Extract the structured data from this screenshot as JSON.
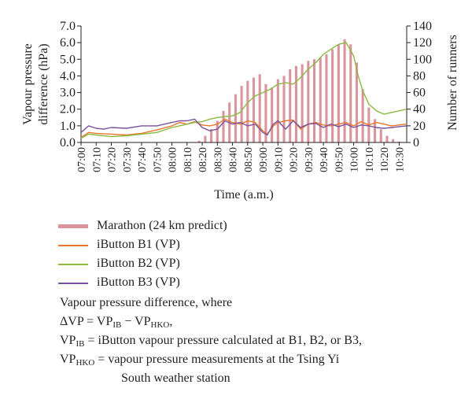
{
  "chart_data": {
    "type": "line+bar",
    "xlabel": "Time (a.m.)",
    "ylabel_left_line1": "Vapour pressure",
    "ylabel_left_line2": "difference (hPa)",
    "ylabel_right": "Number of runners",
    "ylim_left": [
      0,
      7
    ],
    "ylim_right": [
      0,
      140
    ],
    "left_ticks": [
      "0.0",
      "1.0",
      "2.0",
      "3.0",
      "4.0",
      "5.0",
      "6.0",
      "7.0"
    ],
    "right_ticks": [
      "0",
      "20",
      "40",
      "60",
      "80",
      "100",
      "120",
      "140"
    ],
    "x_tick_labels": [
      "07:00",
      "07:10",
      "07:20",
      "07:30",
      "07:40",
      "07:50",
      "08:00",
      "08:10",
      "08:20",
      "08:30",
      "08:40",
      "08:50",
      "09:00",
      "09:10",
      "09:20",
      "09:30",
      "09:40",
      "09:50",
      "10:00",
      "10:10",
      "10:20",
      "10:30"
    ],
    "x_start": "07:00",
    "x_end": "10:35",
    "grid": false,
    "bars": {
      "name": "Marathon (24 km predict)",
      "color": "#d9959b",
      "points": [
        [
          "08:18",
          2
        ],
        [
          "08:22",
          8
        ],
        [
          "08:26",
          16
        ],
        [
          "08:30",
          26
        ],
        [
          "08:34",
          38
        ],
        [
          "08:38",
          48
        ],
        [
          "08:42",
          58
        ],
        [
          "08:46",
          68
        ],
        [
          "08:50",
          74
        ],
        [
          "08:54",
          78
        ],
        [
          "08:58",
          82
        ],
        [
          "09:02",
          70
        ],
        [
          "09:06",
          66
        ],
        [
          "09:10",
          76
        ],
        [
          "09:14",
          80
        ],
        [
          "09:18",
          88
        ],
        [
          "09:22",
          92
        ],
        [
          "09:26",
          94
        ],
        [
          "09:30",
          98
        ],
        [
          "09:34",
          100
        ],
        [
          "09:38",
          102
        ],
        [
          "09:42",
          106
        ],
        [
          "09:46",
          112
        ],
        [
          "09:50",
          118
        ],
        [
          "09:54",
          124
        ],
        [
          "09:58",
          118
        ],
        [
          "10:02",
          96
        ],
        [
          "10:06",
          64
        ],
        [
          "10:10",
          42
        ],
        [
          "10:14",
          28
        ],
        [
          "10:18",
          16
        ],
        [
          "10:22",
          8
        ],
        [
          "10:26",
          4
        ],
        [
          "10:30",
          1
        ]
      ]
    },
    "series": [
      {
        "name": "iButton B1 (VP)",
        "color": "#e8772e",
        "points": [
          [
            "07:00",
            0.3
          ],
          [
            "07:05",
            0.6
          ],
          [
            "07:10",
            0.55
          ],
          [
            "07:20",
            0.5
          ],
          [
            "07:30",
            0.45
          ],
          [
            "07:40",
            0.55
          ],
          [
            "07:50",
            0.75
          ],
          [
            "08:00",
            1.0
          ],
          [
            "08:05",
            1.2
          ],
          [
            "08:10",
            1.1
          ],
          [
            "08:15",
            1.25
          ],
          [
            "08:20",
            1.05
          ],
          [
            "08:25",
            1.0
          ],
          [
            "08:30",
            1.1
          ],
          [
            "08:35",
            1.4
          ],
          [
            "08:40",
            1.2
          ],
          [
            "08:45",
            1.1
          ],
          [
            "08:50",
            1.3
          ],
          [
            "08:55",
            1.2
          ],
          [
            "09:00",
            0.7
          ],
          [
            "09:03",
            0.5
          ],
          [
            "09:07",
            1.0
          ],
          [
            "09:10",
            1.2
          ],
          [
            "09:15",
            1.3
          ],
          [
            "09:20",
            1.35
          ],
          [
            "09:25",
            0.8
          ],
          [
            "09:30",
            1.1
          ],
          [
            "09:35",
            1.2
          ],
          [
            "09:40",
            1.05
          ],
          [
            "09:45",
            1.0
          ],
          [
            "09:50",
            1.1
          ],
          [
            "09:55",
            1.2
          ],
          [
            "10:00",
            1.0
          ],
          [
            "10:05",
            1.25
          ],
          [
            "10:10",
            1.05
          ],
          [
            "10:15",
            1.2
          ],
          [
            "10:20",
            1.1
          ],
          [
            "10:25",
            1.0
          ],
          [
            "10:30",
            1.05
          ],
          [
            "10:35",
            1.1
          ]
        ]
      },
      {
        "name": "iButton B2 (VP)",
        "color": "#8bba43",
        "points": [
          [
            "07:00",
            0.25
          ],
          [
            "07:05",
            0.5
          ],
          [
            "07:10",
            0.45
          ],
          [
            "07:20",
            0.35
          ],
          [
            "07:30",
            0.4
          ],
          [
            "07:40",
            0.5
          ],
          [
            "07:50",
            0.6
          ],
          [
            "08:00",
            0.9
          ],
          [
            "08:05",
            1.0
          ],
          [
            "08:10",
            1.1
          ],
          [
            "08:15",
            1.2
          ],
          [
            "08:20",
            1.25
          ],
          [
            "08:25",
            1.4
          ],
          [
            "08:30",
            1.5
          ],
          [
            "08:35",
            1.55
          ],
          [
            "08:40",
            1.6
          ],
          [
            "08:45",
            1.8
          ],
          [
            "08:50",
            2.4
          ],
          [
            "08:55",
            2.8
          ],
          [
            "09:00",
            3.0
          ],
          [
            "09:05",
            3.2
          ],
          [
            "09:10",
            3.5
          ],
          [
            "09:15",
            3.6
          ],
          [
            "09:20",
            3.5
          ],
          [
            "09:25",
            3.9
          ],
          [
            "09:30",
            4.4
          ],
          [
            "09:35",
            4.8
          ],
          [
            "09:40",
            5.3
          ],
          [
            "09:45",
            5.6
          ],
          [
            "09:50",
            5.9
          ],
          [
            "09:55",
            6.0
          ],
          [
            "10:00",
            5.2
          ],
          [
            "10:03",
            4.0
          ],
          [
            "10:06",
            3.1
          ],
          [
            "10:10",
            2.3
          ],
          [
            "10:15",
            1.9
          ],
          [
            "10:20",
            1.7
          ],
          [
            "10:25",
            1.8
          ],
          [
            "10:30",
            1.9
          ],
          [
            "10:35",
            2.0
          ]
        ]
      },
      {
        "name": "iButton B3 (VP)",
        "color": "#7b519d",
        "points": [
          [
            "07:00",
            0.6
          ],
          [
            "07:05",
            1.0
          ],
          [
            "07:10",
            0.85
          ],
          [
            "07:15",
            0.8
          ],
          [
            "07:20",
            0.9
          ],
          [
            "07:30",
            0.85
          ],
          [
            "07:40",
            1.0
          ],
          [
            "07:50",
            1.0
          ],
          [
            "08:00",
            1.2
          ],
          [
            "08:05",
            1.3
          ],
          [
            "08:10",
            1.3
          ],
          [
            "08:15",
            1.4
          ],
          [
            "08:20",
            0.9
          ],
          [
            "08:25",
            0.7
          ],
          [
            "08:30",
            0.8
          ],
          [
            "08:35",
            1.3
          ],
          [
            "08:40",
            1.1
          ],
          [
            "08:45",
            1.2
          ],
          [
            "08:50",
            1.0
          ],
          [
            "08:55",
            1.1
          ],
          [
            "09:00",
            0.6
          ],
          [
            "09:03",
            0.45
          ],
          [
            "09:07",
            1.1
          ],
          [
            "09:10",
            1.3
          ],
          [
            "09:15",
            0.8
          ],
          [
            "09:20",
            1.3
          ],
          [
            "09:25",
            0.9
          ],
          [
            "09:30",
            1.1
          ],
          [
            "09:35",
            1.15
          ],
          [
            "09:40",
            0.9
          ],
          [
            "09:45",
            1.1
          ],
          [
            "09:50",
            0.95
          ],
          [
            "09:55",
            1.1
          ],
          [
            "10:00",
            0.9
          ],
          [
            "10:05",
            1.05
          ],
          [
            "10:10",
            1.0
          ],
          [
            "10:15",
            0.9
          ],
          [
            "10:20",
            0.85
          ],
          [
            "10:25",
            0.9
          ],
          [
            "10:30",
            0.95
          ],
          [
            "10:35",
            1.0
          ]
        ]
      }
    ]
  },
  "legend": [
    {
      "label": "Marathon (24 km predict)",
      "color": "#d9959b",
      "thick": true
    },
    {
      "label": "iButton B1 (VP)",
      "color": "#e8772e",
      "thick": false
    },
    {
      "label": "iButton B2 (VP)",
      "color": "#8bba43",
      "thick": false
    },
    {
      "label": "iButton B3 (VP)",
      "color": "#7b519d",
      "thick": false
    }
  ],
  "note": {
    "intro": "Vapour pressure difference, where",
    "delta_prefix": "ΔVP = VP",
    "ib_sub": "IB",
    "minus": " − VP",
    "hko_sub": "HKO",
    "delta_suffix": ",",
    "vpib_prefix": "VP",
    "vpib_text": " = iButton vapour pressure calculated at B1, B2, or B3,",
    "vphko_prefix": "VP",
    "vphko_text": " = vapour pressure measurements at the Tsing Yi",
    "vphko_cont": "South weather station"
  }
}
